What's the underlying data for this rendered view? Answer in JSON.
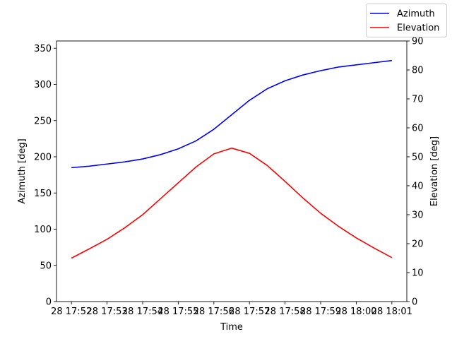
{
  "chart_data": {
    "type": "line",
    "xlabel": "Time",
    "ylabel_left": "Azimuth [deg]",
    "ylabel_right": "Elevation [deg]",
    "x_tick_labels": [
      "28 17:52",
      "28 17:53",
      "28 17:54",
      "28 17:55",
      "28 17:56",
      "28 17:57",
      "28 17:58",
      "28 17:59",
      "28 18:00",
      "28 18:01"
    ],
    "x_ticks_minutes": [
      0,
      1,
      2,
      3,
      4,
      5,
      6,
      7,
      8,
      9
    ],
    "x_minutes": [
      0,
      0.5,
      1,
      1.5,
      2,
      2.5,
      3,
      3.5,
      4,
      4.5,
      5,
      5.5,
      6,
      6.5,
      7,
      7.5,
      8,
      8.5,
      9
    ],
    "xlim_minutes": [
      -0.42,
      9.42
    ],
    "ylim_left": [
      0,
      360
    ],
    "yticks_left": [
      0,
      50,
      100,
      150,
      200,
      250,
      300,
      350
    ],
    "ylim_right": [
      0,
      90
    ],
    "yticks_right": [
      0,
      10,
      20,
      30,
      40,
      50,
      60,
      70,
      80,
      90
    ],
    "series": [
      {
        "name": "Azimuth",
        "axis": "left",
        "color": "#0000ff",
        "values": [
          185,
          187,
          190,
          193,
          197,
          203,
          211,
          222,
          238,
          258,
          278,
          294,
          305,
          313,
          319,
          324,
          327,
          330,
          333
        ]
      },
      {
        "name": "Elevation",
        "axis": "right",
        "color": "#ff0000",
        "values": [
          15,
          18.2,
          21.5,
          25.5,
          30,
          35.5,
          41,
          46.5,
          51,
          53,
          51.2,
          47,
          41.5,
          35.8,
          30.5,
          26,
          22,
          18.5,
          15.2
        ]
      }
    ],
    "grid": false,
    "legend_position": "top-right"
  }
}
